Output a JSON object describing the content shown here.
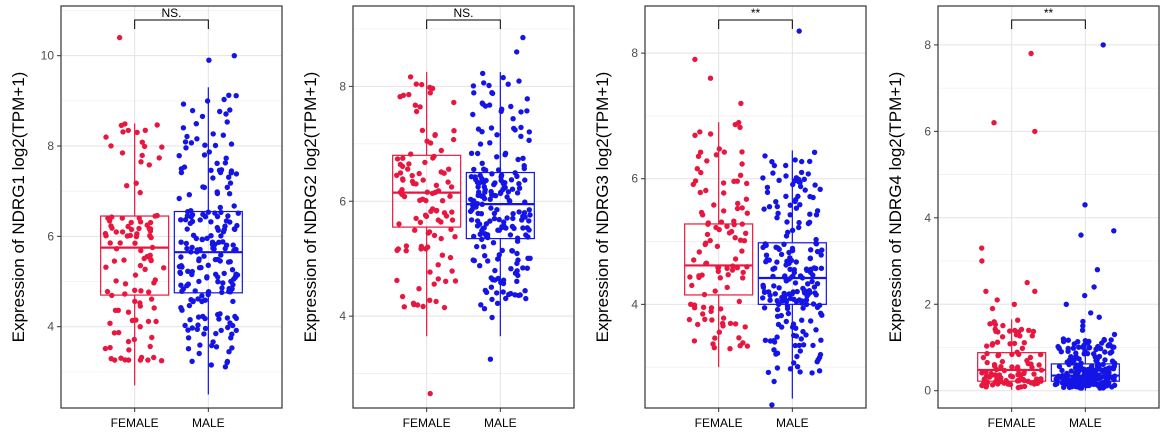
{
  "chart_data": [
    {
      "type": "box",
      "ylabel": "Expression of NDRG1 log2(TPM+1)",
      "categories": [
        "FEMALE",
        "MALE"
      ],
      "ylim": [
        2.2,
        11.1
      ],
      "yticks": [
        4,
        6,
        8,
        10
      ],
      "grid": true,
      "significance": "NS.",
      "boxes": [
        {
          "category": "FEMALE",
          "color": "#e8173f",
          "whisker_low": 2.7,
          "q1": 4.7,
          "median": 5.75,
          "q3": 6.45,
          "whisker_high": 8.5,
          "n": 110,
          "outliers": [
            10.4
          ]
        },
        {
          "category": "MALE",
          "color": "#1414e6",
          "whisker_low": 2.5,
          "q1": 4.75,
          "median": 5.65,
          "q3": 6.55,
          "whisker_high": 9.3,
          "n": 210,
          "outliers": [
            9.9,
            10.0
          ]
        }
      ]
    },
    {
      "type": "box",
      "ylabel": "Expression of NDRG2 log2(TPM+1)",
      "categories": [
        "FEMALE",
        "MALE"
      ],
      "ylim": [
        2.4,
        9.4
      ],
      "yticks": [
        4,
        6,
        8
      ],
      "grid": true,
      "significance": "NS.",
      "boxes": [
        {
          "category": "FEMALE",
          "color": "#e8173f",
          "whisker_low": 3.65,
          "q1": 5.55,
          "median": 6.15,
          "q3": 6.8,
          "whisker_high": 8.25,
          "n": 110,
          "outliers": [
            2.65
          ]
        },
        {
          "category": "MALE",
          "color": "#1414e6",
          "whisker_low": 3.65,
          "q1": 5.35,
          "median": 5.95,
          "q3": 6.5,
          "whisker_high": 8.25,
          "n": 210,
          "outliers": [
            3.25,
            8.6,
            8.85
          ]
        }
      ]
    },
    {
      "type": "box",
      "ylabel": "Expression of NDRG3 log2(TPM+1)",
      "categories": [
        "FEMALE",
        "MALE"
      ],
      "ylim": [
        2.35,
        8.75
      ],
      "yticks": [
        4,
        6,
        8
      ],
      "grid": true,
      "significance": "**",
      "boxes": [
        {
          "category": "FEMALE",
          "color": "#e8173f",
          "whisker_low": 3.0,
          "q1": 4.15,
          "median": 4.62,
          "q3": 5.28,
          "whisker_high": 6.9,
          "n": 110,
          "outliers": [
            7.2,
            7.6,
            7.9
          ]
        },
        {
          "category": "MALE",
          "color": "#1414e6",
          "whisker_low": 2.5,
          "q1": 4.0,
          "median": 4.42,
          "q3": 4.98,
          "whisker_high": 6.45,
          "n": 210,
          "outliers": [
            2.4,
            8.35
          ]
        }
      ]
    },
    {
      "type": "box",
      "ylabel": "Expression of NDRG4 log2(TPM+1)",
      "categories": [
        "FEMALE",
        "MALE"
      ],
      "ylim": [
        -0.4,
        8.9
      ],
      "yticks": [
        0,
        2,
        4,
        6,
        8
      ],
      "grid": true,
      "significance": "**",
      "boxes": [
        {
          "category": "FEMALE",
          "color": "#e8173f",
          "whisker_low": 0.02,
          "q1": 0.22,
          "median": 0.48,
          "q3": 0.88,
          "whisker_high": 1.65,
          "n": 110,
          "outliers": [
            1.9,
            2.0,
            2.1,
            2.3,
            2.3,
            2.5,
            3.0,
            3.3,
            6.0,
            6.2,
            7.8
          ]
        },
        {
          "category": "MALE",
          "color": "#1414e6",
          "whisker_low": 0.0,
          "q1": 0.22,
          "median": 0.35,
          "q3": 0.62,
          "whisker_high": 1.2,
          "n": 210,
          "outliers": [
            1.3,
            1.4,
            1.5,
            1.6,
            1.7,
            1.8,
            2.0,
            2.2,
            2.4,
            2.8,
            3.6,
            3.7,
            4.3,
            8.0
          ]
        }
      ]
    }
  ]
}
